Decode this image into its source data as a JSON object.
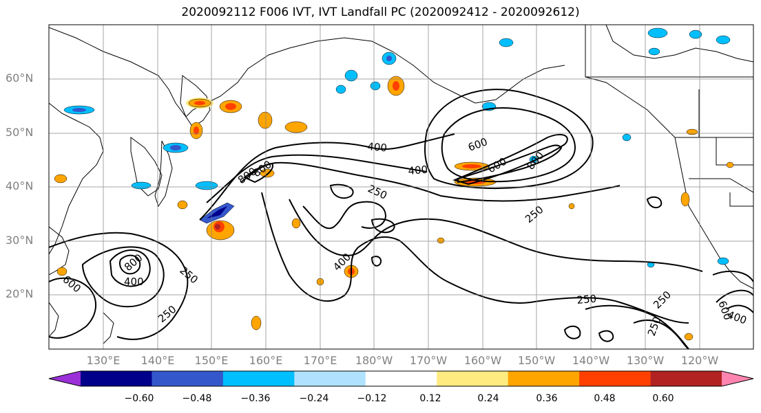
{
  "title": "2020092112 F006 IVT, IVT Landfall PC (2020092412 - 2020092612)",
  "axes": {
    "lat_labels": [
      "60°N",
      "50°N",
      "40°N",
      "30°N",
      "20°N"
    ],
    "lon_labels": [
      "130°E",
      "140°E",
      "150°E",
      "160°E",
      "170°E",
      "180°W",
      "170°W",
      "160°W",
      "150°W",
      "140°W",
      "130°W",
      "120°W"
    ]
  },
  "contour_labels": [
    "400",
    "600",
    "400",
    "250",
    "800",
    "800",
    "600",
    "800",
    "250",
    "400",
    "600",
    "800",
    "400",
    "250",
    "250",
    "250",
    "250",
    "250",
    "400",
    "600"
  ],
  "colorbar": {
    "tick_labels": [
      "−0.60",
      "−0.48",
      "−0.36",
      "−0.24",
      "−0.12",
      "0.12",
      "0.24",
      "0.36",
      "0.48",
      "0.60"
    ],
    "colors": [
      "#9b30d8",
      "#00008b",
      "#3458cc",
      "#00bfff",
      "#b0e2ff",
      "#ffffff",
      "#ffeb80",
      "#ffa500",
      "#ff4000",
      "#b22222",
      "#ff85b0"
    ]
  },
  "chart_data": {
    "type": "contour-map",
    "title": "2020092112 F006 IVT, IVT Landfall PC (2020092412 - 2020092612)",
    "lat_range": [
      10,
      70
    ],
    "lon_range": [
      120,
      250
    ],
    "contour_levels": [
      250,
      400,
      600,
      800
    ],
    "fill_levels": [
      -0.6,
      -0.48,
      -0.36,
      -0.24,
      -0.12,
      0.12,
      0.24,
      0.36,
      0.48,
      0.6
    ]
  }
}
